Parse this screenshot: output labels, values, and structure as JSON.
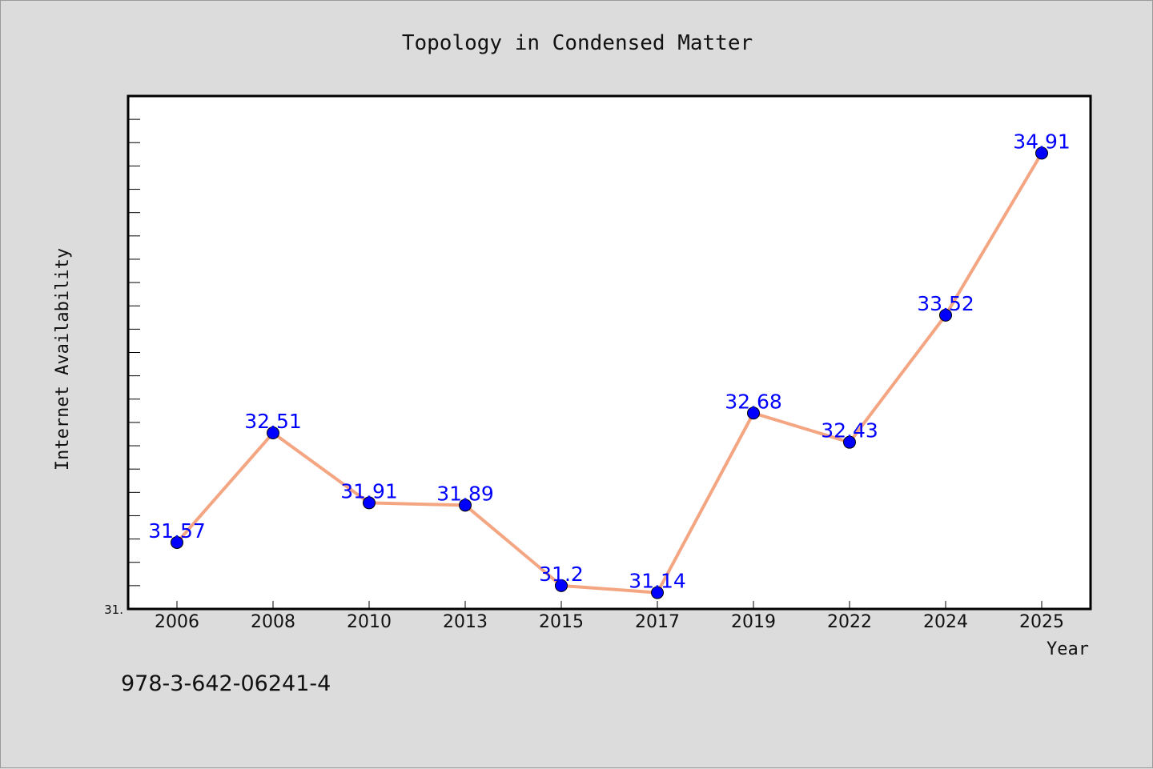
{
  "chart_data": {
    "type": "line",
    "title": "Topology in Condensed Matter",
    "xlabel": "Year",
    "ylabel": "Internet Availability",
    "categories": [
      "2006",
      "2008",
      "2010",
      "2013",
      "2015",
      "2017",
      "2019",
      "2022",
      "2024",
      "2025"
    ],
    "series": [
      {
        "values": [
          31.57,
          32.51,
          31.91,
          31.89,
          31.2,
          31.14,
          32.68,
          32.43,
          33.52,
          34.91
        ],
        "line_color": "#f4a582",
        "marker_color": "#0000ff"
      }
    ],
    "data_labels": [
      "31.57",
      "32.51",
      "31.91",
      "31.89",
      "31.2",
      "31.14",
      "32.68",
      "32.43",
      "33.52",
      "34.91"
    ],
    "ylim": [
      31.0,
      35.4
    ],
    "y_tick_labels": [
      "31."
    ],
    "grid": false,
    "legend": "none"
  },
  "footer": {
    "isbn": "978-3-642-06241-4"
  },
  "colors": {
    "background": "#dcdcdc",
    "plot_background": "#ffffff",
    "line": "#f4a582",
    "marker": "#0000ff",
    "data_label": "#0000ff"
  }
}
